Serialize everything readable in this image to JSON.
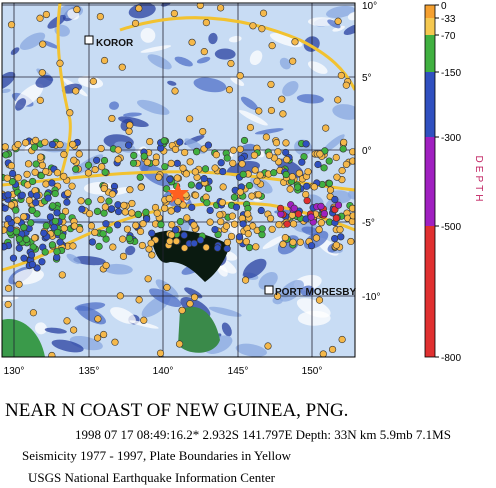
{
  "map": {
    "places": [
      "KOROR",
      "PORT MORESBY"
    ],
    "latitude_labels": [
      "10°",
      "5°",
      "0°",
      "-5°",
      "-10°"
    ],
    "longitude_labels": [
      "130°",
      "135°",
      "140°",
      "145°",
      "150°"
    ]
  },
  "legend": {
    "title": "DEPTH",
    "labels": [
      "0",
      "-33",
      "-70",
      "-150",
      "-300",
      "-500",
      "-800"
    ]
  },
  "caption": {
    "title": "NEAR N COAST OF NEW GUINEA, PNG.",
    "event": "1998 07 17 08:49:16.2*  2.932S 141.797E Depth:  33N km 5.9mb 7.1MS",
    "seismicity": "Seismicity 1977 - 1997, Plate Boundaries in Yellow",
    "credit": "USGS National Earthquake Information Center"
  }
}
